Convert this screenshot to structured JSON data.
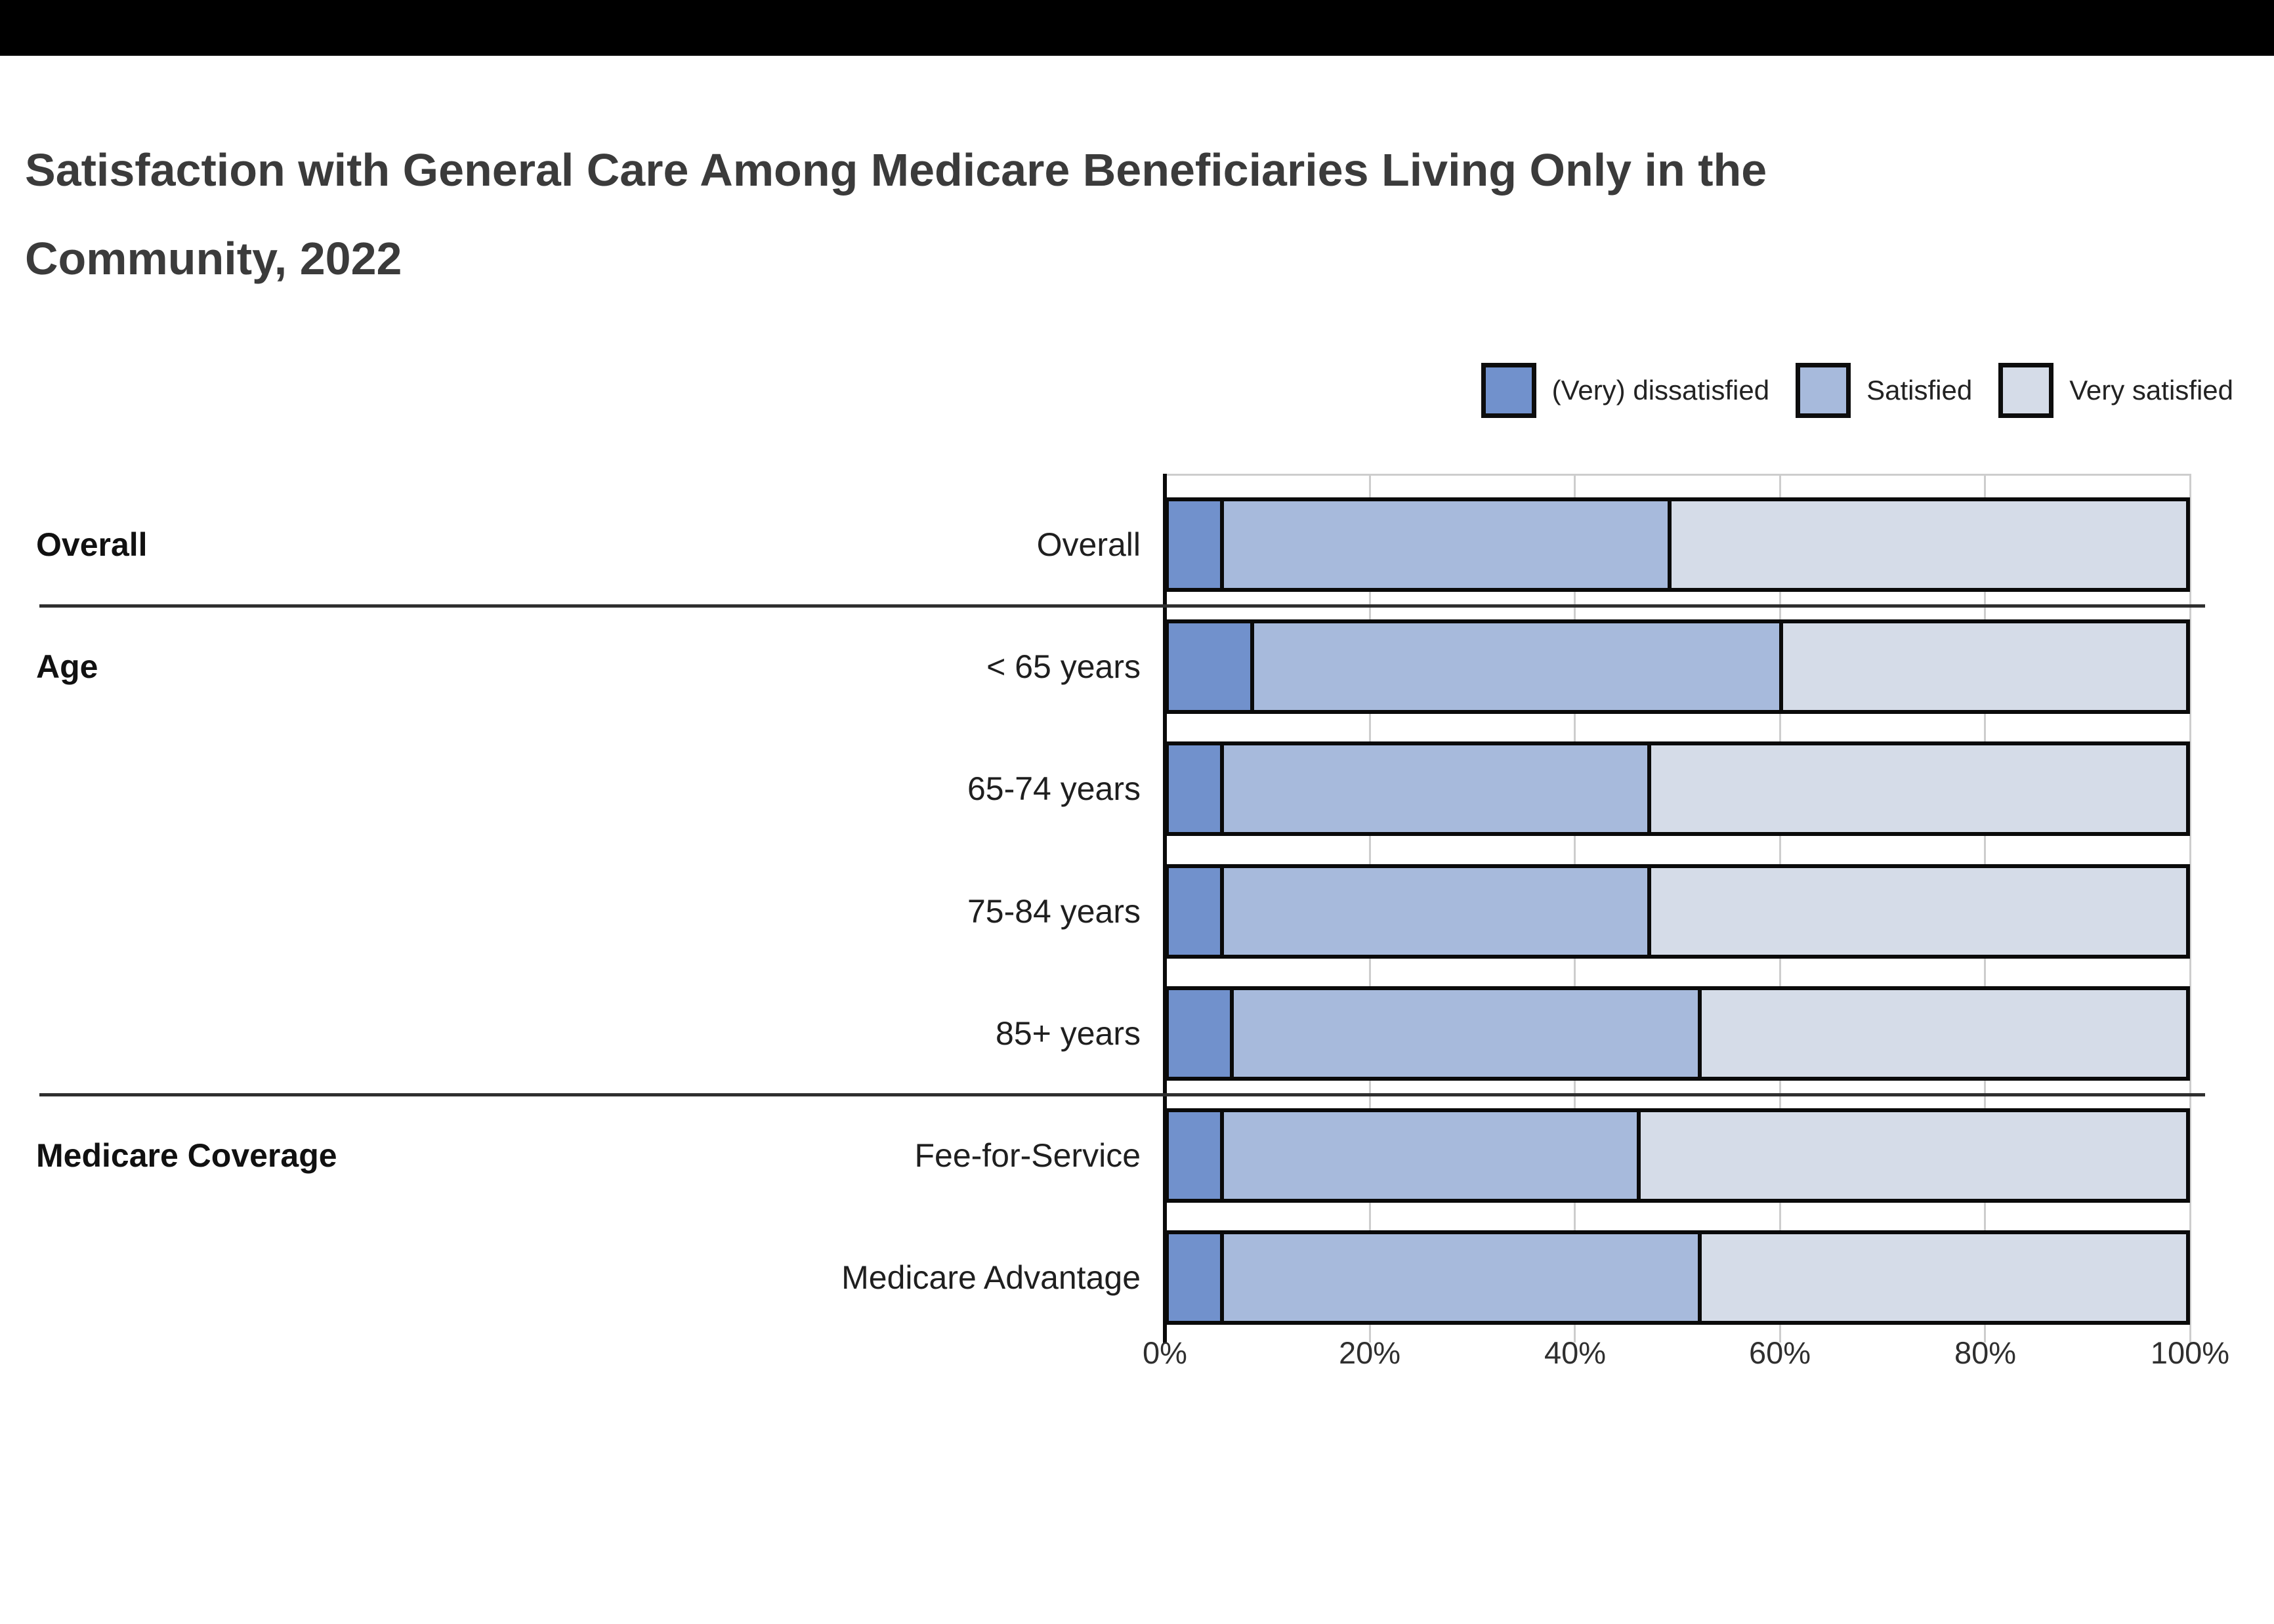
{
  "page": {
    "top_bar_color": "#000000",
    "background_color": "#ffffff"
  },
  "title": "Satisfaction with General Care Among Medicare Beneficiaries Living Only in the Community, 2022",
  "title_lines": [
    "Satisfaction with General Care Among Medicare Beneficiaries Living Only in the",
    "Community, 2022"
  ],
  "legend": [
    {
      "label": "(Very) dissatisfied",
      "color": "#7191CC"
    },
    {
      "label": "Satisfied",
      "color": "#A7BADC"
    },
    {
      "label": "Very satisfied",
      "color": "#D5DCE8"
    }
  ],
  "chart_data": {
    "type": "bar",
    "orientation": "horizontal",
    "stacked": true,
    "unit": "percent",
    "xlim": [
      0,
      100
    ],
    "x_ticks": [
      "0%",
      "20%",
      "40%",
      "60%",
      "80%",
      "100%"
    ],
    "grid": true,
    "legend_position": "top-right",
    "bar_border_color": "#0a0a0a",
    "gridline_color": "#cdcdcd",
    "groups": [
      {
        "label": "Overall",
        "rows": [
          "Overall"
        ]
      },
      {
        "label": "Age",
        "rows": [
          "< 65 years",
          "65-74 years",
          "75-84 years",
          "85+ years"
        ]
      },
      {
        "label": "Medicare Coverage",
        "rows": [
          "Fee-for-Service",
          "Medicare Advantage"
        ]
      }
    ],
    "categories": [
      "Overall",
      "< 65 years",
      "65-74 years",
      "75-84 years",
      "85+ years",
      "Fee-for-Service",
      "Medicare Advantage"
    ],
    "series": [
      {
        "name": "(Very) dissatisfied",
        "color": "#7191CC",
        "values": [
          5,
          8,
          5,
          5,
          6,
          5,
          5
        ]
      },
      {
        "name": "Satisfied",
        "color": "#A7BADC",
        "values": [
          44,
          52,
          42,
          42,
          46,
          41,
          47
        ]
      },
      {
        "name": "Very satisfied",
        "color": "#D5DCE8",
        "values": [
          51,
          40,
          53,
          53,
          48,
          54,
          48
        ]
      }
    ]
  }
}
